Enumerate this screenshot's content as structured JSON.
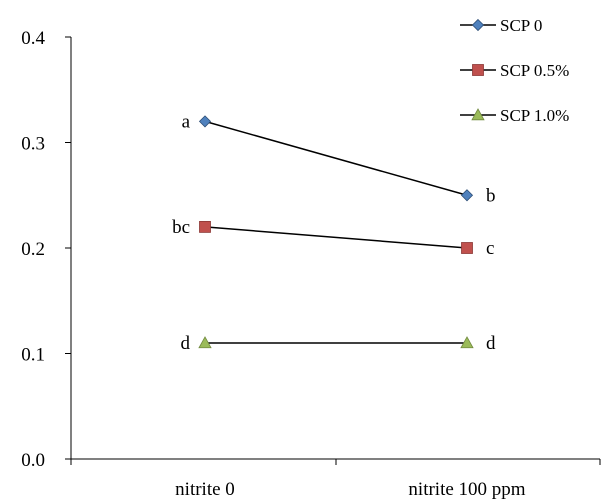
{
  "chart_data": {
    "type": "line",
    "categories": [
      "nitrite 0",
      "nitrite 100 ppm"
    ],
    "yticks": [
      "0.0",
      "0.1",
      "0.2",
      "0.3",
      "0.4"
    ],
    "ylim": [
      0,
      0.4
    ],
    "grid": false,
    "legend_position": "top-right",
    "series": [
      {
        "name": "SCP 0",
        "values": [
          0.32,
          0.25
        ],
        "labels": [
          "a",
          "b"
        ],
        "marker": "diamond",
        "color": "#4F81BD"
      },
      {
        "name": "SCP 0.5%",
        "values": [
          0.22,
          0.2
        ],
        "labels": [
          "bc",
          "c"
        ],
        "marker": "square",
        "color": "#C0504D"
      },
      {
        "name": "SCP 1.0%",
        "values": [
          0.11,
          0.11
        ],
        "labels": [
          "d",
          "d"
        ],
        "marker": "triangle",
        "color": "#9BBB59"
      }
    ]
  }
}
